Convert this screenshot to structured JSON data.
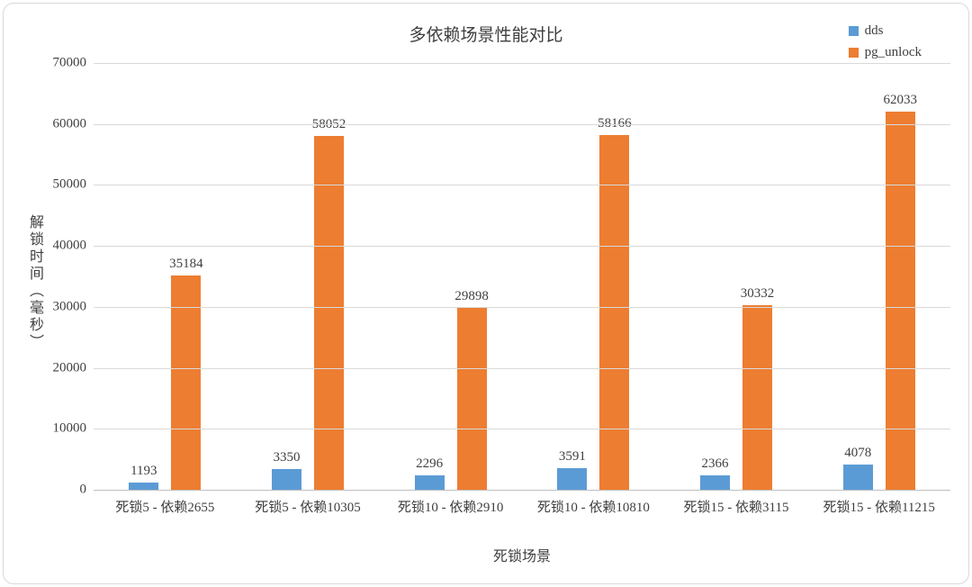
{
  "chart_data": {
    "type": "bar",
    "title": "多依赖场景性能对比",
    "xlabel": "死锁场景",
    "ylabel": "解锁时间（毫秒）",
    "categories": [
      "死锁5 - 依赖2655",
      "死锁5 - 依赖10305",
      "死锁10 - 依赖2910",
      "死锁10 - 依赖10810",
      "死锁15 - 依赖3115",
      "死锁15 - 依赖11215"
    ],
    "series": [
      {
        "name": "dds",
        "color": "#5B9BD5",
        "values": [
          1193,
          3350,
          2296,
          3591,
          2366,
          4078
        ]
      },
      {
        "name": "pg_unlock",
        "color": "#ED7D31",
        "values": [
          35184,
          58052,
          29898,
          58166,
          30332,
          62033
        ]
      }
    ],
    "ylim": [
      0,
      70000
    ],
    "ytick_step": 10000,
    "yticks": [
      0,
      10000,
      20000,
      30000,
      40000,
      50000,
      60000,
      70000
    ],
    "grid": true,
    "legend_position": "top-right"
  }
}
